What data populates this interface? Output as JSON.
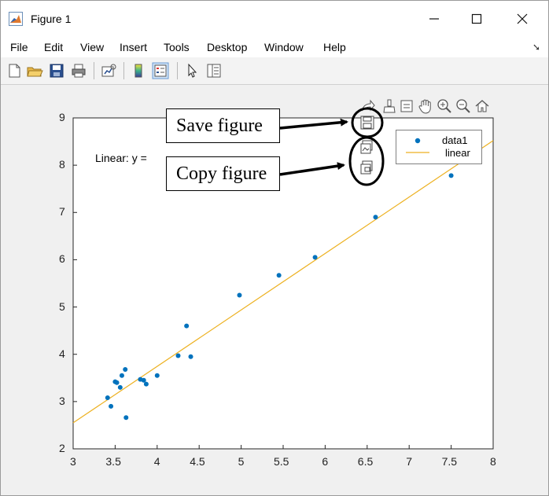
{
  "window": {
    "title": "Figure 1"
  },
  "menu": [
    "File",
    "Edit",
    "View",
    "Insert",
    "Tools",
    "Desktop",
    "Window",
    "Help"
  ],
  "toolbar_icons": [
    "new-figure-icon",
    "open-file-icon",
    "save-icon",
    "print-icon",
    "link-plot-icon",
    "colorbar-icon",
    "legend-icon",
    "edit-plot-icon",
    "property-inspector-icon"
  ],
  "axes_toolbar_icons": [
    "export-icon",
    "brush-icon",
    "data-tips-icon",
    "pan-icon",
    "zoom-in-icon",
    "zoom-out-icon",
    "home-icon"
  ],
  "callouts": {
    "save": "Save figure",
    "copy": "Copy figure"
  },
  "equation_text": "Linear:  y = ",
  "legend": {
    "entries": [
      "data1",
      "linear"
    ]
  },
  "colors": {
    "points": "#0072bd",
    "fit": "#edb120",
    "annotation": "#000000"
  },
  "chart_data": {
    "type": "scatter",
    "xlim": [
      3,
      8
    ],
    "ylim": [
      2,
      9
    ],
    "xticks": [
      "3",
      "3.5",
      "4",
      "4.5",
      "5",
      "5.5",
      "6",
      "6.5",
      "7",
      "7.5",
      "8"
    ],
    "yticks": [
      "2",
      "3",
      "4",
      "5",
      "6",
      "7",
      "8",
      "9"
    ],
    "series": [
      {
        "name": "data1",
        "type": "scatter",
        "x": [
          3.41,
          3.45,
          3.5,
          3.52,
          3.56,
          3.58,
          3.62,
          3.63,
          3.8,
          3.84,
          3.87,
          4.0,
          4.25,
          4.35,
          4.4,
          4.98,
          5.45,
          5.88,
          6.6,
          7.5
        ],
        "y": [
          3.08,
          2.9,
          3.42,
          3.4,
          3.3,
          3.55,
          3.68,
          2.66,
          3.47,
          3.45,
          3.37,
          3.55,
          3.97,
          4.6,
          3.95,
          5.25,
          5.67,
          6.05,
          6.9,
          7.78
        ]
      },
      {
        "name": "linear",
        "type": "line",
        "x": [
          3,
          8
        ],
        "y": [
          2.55,
          8.52
        ]
      }
    ]
  }
}
